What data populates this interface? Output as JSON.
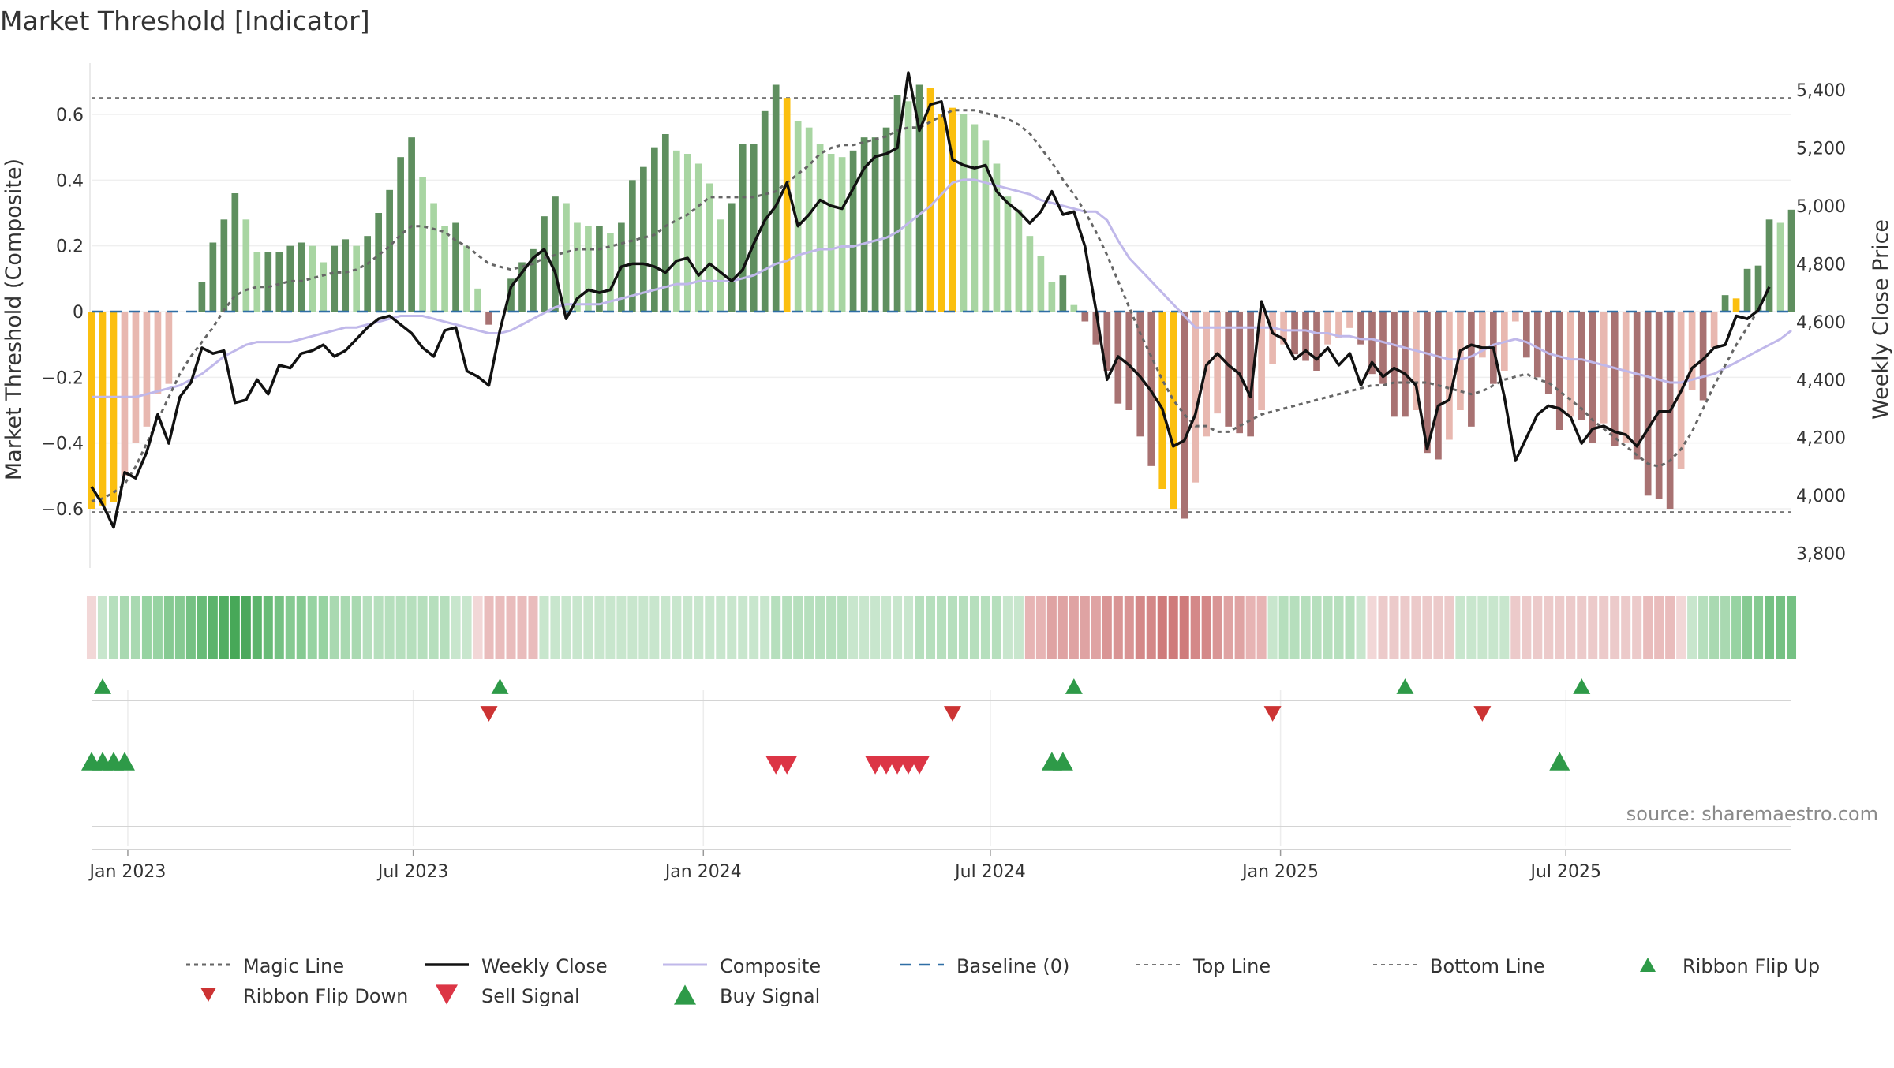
{
  "chart_data": {
    "type": "bar",
    "title": "Market Threshold [Indicator]",
    "ylabel": "Market Threshold (Composite)",
    "y2label": "Weekly Close Price",
    "source": "source: sharemaestro.com",
    "ylim": [
      -0.78,
      0.78
    ],
    "y2lim": [
      3750,
      5520
    ],
    "yticks": [
      -0.6,
      -0.4,
      -0.2,
      0,
      0.2,
      0.4,
      0.6
    ],
    "ytick_labels": [
      "−0.6",
      "−0.4",
      "−0.2",
      "0",
      "0.2",
      "0.4",
      "0.6"
    ],
    "y2ticks": [
      3800,
      4000,
      4200,
      4400,
      4600,
      4800,
      5000,
      5200,
      5400
    ],
    "y2tick_labels": [
      "3,800",
      "4,000",
      "4,200",
      "4,400",
      "4,600",
      "4,800",
      "5,000",
      "5,200",
      "5,400"
    ],
    "x_start": "2022-12-09",
    "x_step_days": 7,
    "xticks": [
      {
        "date": "2023-01-01",
        "label": "Jan 2023"
      },
      {
        "date": "2023-07-01",
        "label": "Jul 2023"
      },
      {
        "date": "2024-01-01",
        "label": "Jan 2024"
      },
      {
        "date": "2024-07-01",
        "label": "Jul 2024"
      },
      {
        "date": "2025-01-01",
        "label": "Jan 2025"
      },
      {
        "date": "2025-07-01",
        "label": "Jul 2025"
      }
    ],
    "top_line": 0.65,
    "bottom_line": -0.61,
    "baseline": 0,
    "composite": [
      -0.6,
      -0.59,
      -0.58,
      -0.5,
      -0.4,
      -0.35,
      -0.25,
      -0.22,
      0,
      0,
      0.09,
      0.21,
      0.28,
      0.36,
      0.28,
      0.18,
      0.18,
      0.18,
      0.2,
      0.21,
      0.2,
      0.15,
      0.2,
      0.22,
      0.2,
      0.23,
      0.3,
      0.37,
      0.47,
      0.53,
      0.41,
      0.33,
      0.26,
      0.27,
      0.2,
      0.07,
      -0.04,
      0,
      0.1,
      0.15,
      0.19,
      0.29,
      0.35,
      0.33,
      0.27,
      0.26,
      0.26,
      0.24,
      0.27,
      0.4,
      0.44,
      0.5,
      0.54,
      0.49,
      0.48,
      0.45,
      0.39,
      0.28,
      0.33,
      0.51,
      0.51,
      0.61,
      0.69,
      0.65,
      0.58,
      0.56,
      0.51,
      0.48,
      0.47,
      0.49,
      0.53,
      0.53,
      0.56,
      0.66,
      0.64,
      0.69,
      0.68,
      0.6,
      0.62,
      0.6,
      0.57,
      0.52,
      0.45,
      0.35,
      0.31,
      0.23,
      0.17,
      0.09,
      0.11,
      0.02,
      -0.03,
      -0.1,
      -0.18,
      -0.28,
      -0.3,
      -0.38,
      -0.47,
      -0.54,
      -0.6,
      -0.63,
      -0.52,
      -0.38,
      -0.31,
      -0.35,
      -0.37,
      -0.38,
      -0.3,
      -0.16,
      -0.1,
      -0.13,
      -0.15,
      -0.18,
      -0.1,
      -0.08,
      -0.05,
      -0.1,
      -0.19,
      -0.22,
      -0.32,
      -0.32,
      -0.3,
      -0.43,
      -0.45,
      -0.39,
      -0.3,
      -0.35,
      -0.14,
      -0.22,
      -0.18,
      -0.03,
      -0.14,
      -0.2,
      -0.25,
      -0.36,
      -0.32,
      -0.33,
      -0.4,
      -0.34,
      -0.41,
      -0.4,
      -0.45,
      -0.56,
      -0.57,
      -0.6,
      -0.48,
      -0.24,
      -0.27,
      -0.11,
      0.05,
      0.04,
      0.13,
      0.14,
      0.28,
      0.27,
      0.31
    ],
    "highlight_weeks": [
      0,
      1,
      2,
      63,
      76,
      77,
      78,
      97,
      98,
      149
    ],
    "weekly_close": [
      4030,
      3970,
      3890,
      4080,
      4060,
      4150,
      4280,
      4180,
      4340,
      4390,
      4510,
      4490,
      4500,
      4320,
      4330,
      4400,
      4350,
      4450,
      4440,
      4490,
      4500,
      4520,
      4480,
      4500,
      4540,
      4580,
      4610,
      4620,
      4590,
      4560,
      4510,
      4480,
      4570,
      4580,
      4430,
      4410,
      4380,
      4570,
      4720,
      4770,
      4820,
      4850,
      4770,
      4610,
      4680,
      4710,
      4700,
      4710,
      4790,
      4800,
      4800,
      4790,
      4770,
      4810,
      4820,
      4760,
      4800,
      4770,
      4740,
      4780,
      4870,
      4950,
      5000,
      5080,
      4930,
      4970,
      5020,
      5000,
      4990,
      5060,
      5130,
      5170,
      5180,
      5200,
      5460,
      5260,
      5350,
      5360,
      5160,
      5140,
      5130,
      5140,
      5050,
      5010,
      4980,
      4940,
      4980,
      5050,
      4970,
      4980,
      4860,
      4640,
      4400,
      4480,
      4450,
      4410,
      4360,
      4300,
      4170,
      4190,
      4280,
      4450,
      4490,
      4450,
      4420,
      4340,
      4670,
      4560,
      4540,
      4470,
      4500,
      4470,
      4510,
      4450,
      4490,
      4380,
      4460,
      4410,
      4440,
      4420,
      4380,
      4160,
      4310,
      4330,
      4500,
      4520,
      4510,
      4510,
      4340,
      4120,
      4200,
      4280,
      4310,
      4300,
      4270,
      4180,
      4230,
      4240,
      4220,
      4210,
      4170,
      4230,
      4290,
      4290,
      4360,
      4440,
      4470,
      4510,
      4520,
      4620,
      4610,
      4640,
      4720
    ],
    "magic_line": [
      3980,
      3990,
      4010,
      4040,
      4100,
      4180,
      4260,
      4340,
      4420,
      4480,
      4530,
      4580,
      4640,
      4690,
      4710,
      4720,
      4720,
      4730,
      4740,
      4740,
      4750,
      4760,
      4770,
      4770,
      4780,
      4800,
      4830,
      4860,
      4900,
      4930,
      4930,
      4920,
      4910,
      4880,
      4860,
      4830,
      4800,
      4790,
      4780,
      4790,
      4800,
      4820,
      4830,
      4840,
      4850,
      4850,
      4850,
      4860,
      4870,
      4880,
      4890,
      4900,
      4930,
      4950,
      4970,
      5000,
      5030,
      5030,
      5030,
      5030,
      5030,
      5040,
      5050,
      5080,
      5110,
      5140,
      5180,
      5200,
      5210,
      5210,
      5220,
      5230,
      5240,
      5260,
      5270,
      5270,
      5290,
      5310,
      5330,
      5330,
      5330,
      5320,
      5310,
      5300,
      5280,
      5250,
      5200,
      5150,
      5090,
      5040,
      4980,
      4910,
      4830,
      4740,
      4650,
      4560,
      4480,
      4400,
      4330,
      4280,
      4240,
      4240,
      4220,
      4220,
      4240,
      4260,
      4280,
      4290,
      4300,
      4310,
      4320,
      4330,
      4340,
      4350,
      4360,
      4370,
      4380,
      4380,
      4390,
      4390,
      4390,
      4390,
      4380,
      4370,
      4360,
      4350,
      4360,
      4380,
      4400,
      4410,
      4420,
      4400,
      4390,
      4360,
      4330,
      4300,
      4260,
      4230,
      4200,
      4170,
      4140,
      4110,
      4100,
      4120,
      4160,
      4220,
      4300,
      4380,
      4450,
      4520,
      4580,
      4640,
      4720
    ],
    "composite_line": [
      4340,
      4340,
      4340,
      4340,
      4340,
      4350,
      4360,
      4370,
      4380,
      4400,
      4420,
      4450,
      4480,
      4500,
      4520,
      4530,
      4530,
      4530,
      4530,
      4540,
      4550,
      4560,
      4570,
      4580,
      4580,
      4590,
      4600,
      4610,
      4620,
      4620,
      4620,
      4610,
      4600,
      4590,
      4580,
      4570,
      4560,
      4560,
      4570,
      4590,
      4610,
      4630,
      4650,
      4660,
      4660,
      4660,
      4660,
      4670,
      4680,
      4690,
      4700,
      4710,
      4720,
      4730,
      4730,
      4740,
      4740,
      4740,
      4740,
      4750,
      4760,
      4780,
      4800,
      4810,
      4830,
      4840,
      4850,
      4850,
      4860,
      4860,
      4870,
      4880,
      4890,
      4910,
      4940,
      4970,
      5000,
      5040,
      5080,
      5090,
      5090,
      5080,
      5070,
      5060,
      5050,
      5040,
      5020,
      5010,
      5000,
      4990,
      4980,
      4980,
      4950,
      4880,
      4820,
      4780,
      4740,
      4700,
      4660,
      4620,
      4580,
      4580,
      4580,
      4580,
      4580,
      4580,
      4580,
      4580,
      4570,
      4570,
      4570,
      4560,
      4560,
      4550,
      4550,
      4540,
      4540,
      4530,
      4520,
      4510,
      4500,
      4490,
      4480,
      4470,
      4470,
      4480,
      4500,
      4520,
      4530,
      4540,
      4530,
      4510,
      4490,
      4480,
      4470,
      4470,
      4460,
      4450,
      4440,
      4430,
      4420,
      4410,
      4400,
      4390,
      4390,
      4400,
      4410,
      4420,
      4440,
      4460,
      4480,
      4500,
      4520,
      4540,
      4570
    ],
    "ribbon_colors": [
      "#f2d7d7",
      "#c8e6cd",
      "#b6dfbd",
      "#a9d9b1",
      "#a9d9b1",
      "#97d3a2",
      "#97d3a2",
      "#86ca92",
      "#86ca92",
      "#75c183",
      "#68bb77",
      "#5cb46c",
      "#52ae62",
      "#47a858",
      "#4da85d",
      "#5cb46c",
      "#68bb77",
      "#75c183",
      "#86ca92",
      "#86ca92",
      "#97d3a2",
      "#97d3a2",
      "#a9d9b1",
      "#a9d9b1",
      "#a9d9b1",
      "#b6dfbd",
      "#b6dfbd",
      "#b6dfbd",
      "#b6dfbd",
      "#b6dfbd",
      "#b6dfbd",
      "#b6dfbd",
      "#b6dfbd",
      "#c8e6cd",
      "#c8e6cd",
      "#f2d7d7",
      "#e9bcbc",
      "#e9bcbc",
      "#e9bcbc",
      "#e9bcbc",
      "#e9bcbc",
      "#c8e6cd",
      "#c8e6cd",
      "#c8e6cd",
      "#c8e6cd",
      "#c8e6cd",
      "#c8e6cd",
      "#c8e6cd",
      "#c8e6cd",
      "#c8e6cd",
      "#c8e6cd",
      "#c8e6cd",
      "#c8e6cd",
      "#c8e6cd",
      "#c8e6cd",
      "#c8e6cd",
      "#c8e6cd",
      "#c8e6cd",
      "#c8e6cd",
      "#c8e6cd",
      "#c8e6cd",
      "#c8e6cd",
      "#b6dfbd",
      "#b6dfbd",
      "#b6dfbd",
      "#b6dfbd",
      "#b6dfbd",
      "#b6dfbd",
      "#b6dfbd",
      "#c8e6cd",
      "#c8e6cd",
      "#c8e6cd",
      "#c8e6cd",
      "#c8e6cd",
      "#c8e6cd",
      "#b6dfbd",
      "#b6dfbd",
      "#b6dfbd",
      "#b6dfbd",
      "#b6dfbd",
      "#b6dfbd",
      "#b6dfbd",
      "#b6dfbd",
      "#c8e6cd",
      "#c8e6cd",
      "#e7b4b4",
      "#e7b4b4",
      "#dfa3a3",
      "#dfa3a3",
      "#dfa3a3",
      "#dfa3a3",
      "#dfa3a3",
      "#d99595",
      "#d99595",
      "#d99595",
      "#d48888",
      "#d48888",
      "#cf7b7b",
      "#cf7b7b",
      "#cf7b7b",
      "#d48888",
      "#d48888",
      "#d99595",
      "#dfa3a3",
      "#dfa3a3",
      "#e7b4b4",
      "#e7b4b4",
      "#c8e6cd",
      "#b6dfbd",
      "#b6dfbd",
      "#b6dfbd",
      "#b6dfbd",
      "#b6dfbd",
      "#b6dfbd",
      "#b6dfbd",
      "#c8e6cd",
      "#f2d7d7",
      "#eccaca",
      "#eccaca",
      "#eccaca",
      "#eccaca",
      "#eccaca",
      "#eccaca",
      "#eccaca",
      "#c8e6cd",
      "#c8e6cd",
      "#c8e6cd",
      "#c8e6cd",
      "#c8e6cd",
      "#eccaca",
      "#eccaca",
      "#eccaca",
      "#eccaca",
      "#eccaca",
      "#eccaca",
      "#eccaca",
      "#eccaca",
      "#eccaca",
      "#eccaca",
      "#eccaca",
      "#eccaca",
      "#e9bcbc",
      "#e9bcbc",
      "#e9bcbc",
      "#f2d7d7",
      "#c8e6cd",
      "#b6dfbd",
      "#a9d9b1",
      "#a9d9b1",
      "#97d3a2",
      "#86ca92",
      "#86ca92",
      "#75c183",
      "#75c183",
      "#75c183"
    ],
    "ribbon_flip_up": [
      "2022-12-16",
      "2023-08-25",
      "2024-08-23",
      "2025-03-21",
      "2025-07-11"
    ],
    "ribbon_flip_down": [
      "2023-08-18",
      "2024-06-07",
      "2024-12-27",
      "2025-05-09"
    ],
    "buy_signal": [
      "2022-12-09",
      "2022-12-16",
      "2022-12-23",
      "2022-12-30",
      "2024-08-09",
      "2024-08-16",
      "2025-06-27"
    ],
    "sell_signal": [
      "2024-02-16",
      "2024-02-23",
      "2024-04-19",
      "2024-04-26",
      "2024-05-03",
      "2024-05-10",
      "2024-05-17"
    ],
    "legend": [
      {
        "label": "Magic Line",
        "key": "magic"
      },
      {
        "label": "Weekly Close",
        "key": "close"
      },
      {
        "label": "Composite",
        "key": "composite"
      },
      {
        "label": "Baseline (0)",
        "key": "baseline"
      },
      {
        "label": "Top Line",
        "key": "topline"
      },
      {
        "label": "Bottom Line",
        "key": "bottomline"
      },
      {
        "label": "Ribbon Flip Up",
        "key": "flipup"
      },
      {
        "label": "Ribbon Flip Down",
        "key": "flipdown"
      },
      {
        "label": "Sell Signal",
        "key": "sell"
      },
      {
        "label": "Buy Signal",
        "key": "buy"
      }
    ],
    "colors": {
      "pos_strong": "#5f8f5f",
      "pos_light": "#a8d5a2",
      "neg_strong": "#a87272",
      "neg_light": "#e8b8b0",
      "highlight": "#fbbf0f",
      "close_line": "#111111",
      "magic_line": "#666666",
      "composite_line": "#c0b8ea",
      "baseline": "#2f6ea5",
      "threshold_line": "#777777",
      "flip_up": "#2e9a48",
      "flip_down": "#cc3333",
      "buy": "#2e9a48",
      "sell": "#dc3545"
    }
  }
}
